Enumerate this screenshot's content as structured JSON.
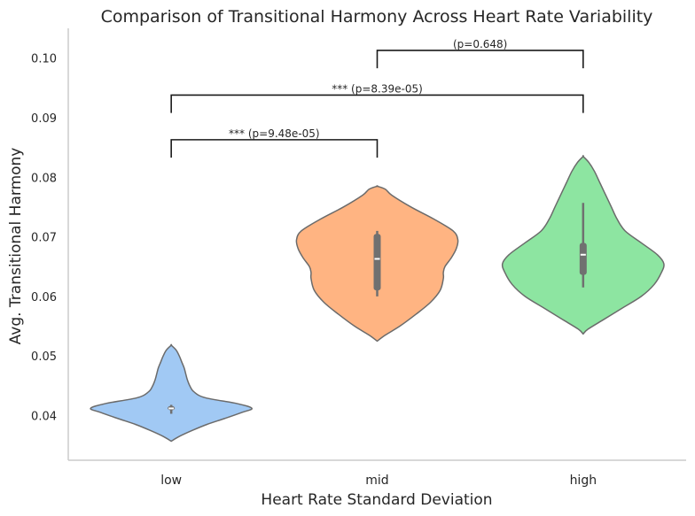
{
  "chart_data": {
    "type": "violin",
    "title": "Comparison of Transitional Harmony Across Heart Rate Variability",
    "xlabel": "Heart Rate Standard Deviation",
    "ylabel": "Avg. Transitional Harmony",
    "categories": [
      "low",
      "mid",
      "high"
    ],
    "ylim": [
      0.0325,
      0.105
    ],
    "yticks": [
      "0.04",
      "0.05",
      "0.06",
      "0.07",
      "0.08",
      "0.09",
      "0.10"
    ],
    "ytick_values": [
      0.04,
      0.05,
      0.06,
      0.07,
      0.08,
      0.09,
      0.1
    ],
    "grid": false,
    "colors": [
      "#a1c9f4",
      "#ffb482",
      "#8de5a1"
    ],
    "violins": [
      {
        "category": "low",
        "min": 0.0357,
        "max": 0.0518,
        "q1": 0.0409,
        "median": 0.0412,
        "q3": 0.0416,
        "whisker_low": 0.0403,
        "whisker_high": 0.0418,
        "density": [
          [
            0.0357,
            0.0
          ],
          [
            0.0365,
            0.1
          ],
          [
            0.0375,
            0.26
          ],
          [
            0.0385,
            0.44
          ],
          [
            0.0395,
            0.66
          ],
          [
            0.0405,
            0.87
          ],
          [
            0.0412,
            1.0
          ],
          [
            0.042,
            0.82
          ],
          [
            0.043,
            0.42
          ],
          [
            0.044,
            0.28
          ],
          [
            0.045,
            0.23
          ],
          [
            0.046,
            0.2
          ],
          [
            0.047,
            0.18
          ],
          [
            0.048,
            0.16
          ],
          [
            0.049,
            0.13
          ],
          [
            0.05,
            0.1
          ],
          [
            0.051,
            0.06
          ],
          [
            0.0518,
            0.0
          ]
        ]
      },
      {
        "category": "mid",
        "min": 0.0525,
        "max": 0.0785,
        "q1": 0.061,
        "median": 0.0663,
        "q3": 0.0705,
        "whisker_low": 0.06,
        "whisker_high": 0.071,
        "density": [
          [
            0.0525,
            0.0
          ],
          [
            0.0535,
            0.1
          ],
          [
            0.055,
            0.28
          ],
          [
            0.057,
            0.48
          ],
          [
            0.059,
            0.66
          ],
          [
            0.061,
            0.78
          ],
          [
            0.063,
            0.82
          ],
          [
            0.064,
            0.82
          ],
          [
            0.065,
            0.84
          ],
          [
            0.0665,
            0.92
          ],
          [
            0.068,
            0.98
          ],
          [
            0.0695,
            1.0
          ],
          [
            0.071,
            0.94
          ],
          [
            0.073,
            0.7
          ],
          [
            0.075,
            0.42
          ],
          [
            0.077,
            0.18
          ],
          [
            0.078,
            0.1
          ],
          [
            0.0785,
            0.0
          ]
        ]
      },
      {
        "category": "high",
        "min": 0.0537,
        "max": 0.0835,
        "q1": 0.0636,
        "median": 0.067,
        "q3": 0.069,
        "whisker_low": 0.0615,
        "whisker_high": 0.0757,
        "density": [
          [
            0.0537,
            0.0
          ],
          [
            0.0545,
            0.06
          ],
          [
            0.056,
            0.24
          ],
          [
            0.058,
            0.48
          ],
          [
            0.06,
            0.72
          ],
          [
            0.062,
            0.88
          ],
          [
            0.064,
            0.97
          ],
          [
            0.0655,
            1.0
          ],
          [
            0.067,
            0.92
          ],
          [
            0.069,
            0.72
          ],
          [
            0.071,
            0.52
          ],
          [
            0.073,
            0.42
          ],
          [
            0.075,
            0.35
          ],
          [
            0.077,
            0.28
          ],
          [
            0.079,
            0.21
          ],
          [
            0.081,
            0.14
          ],
          [
            0.0825,
            0.07
          ],
          [
            0.0835,
            0.0
          ]
        ]
      }
    ],
    "annotations": [
      {
        "from": "low",
        "to": "mid",
        "label": "*** (p=9.48e-05)",
        "y": 0.0863,
        "tip": 0.0833
      },
      {
        "from": "low",
        "to": "high",
        "label": "*** (p=8.39e-05)",
        "y": 0.0938,
        "tip": 0.0908
      },
      {
        "from": "mid",
        "to": "high",
        "label": "(p=0.648)",
        "y": 0.1013,
        "tip": 0.0983
      }
    ]
  }
}
